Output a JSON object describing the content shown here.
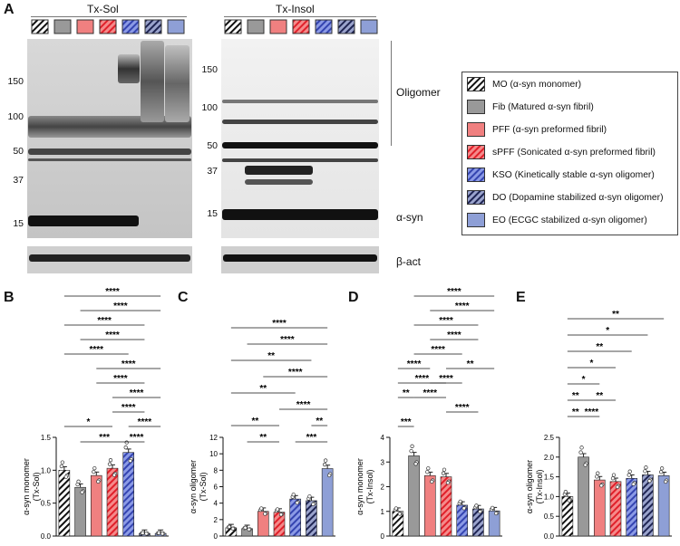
{
  "panel_labels": {
    "A": "A",
    "B": "B",
    "C": "C",
    "D": "D",
    "E": "E"
  },
  "blot": {
    "sol_title": "Tx-Sol",
    "insol_title": "Tx-Insol",
    "sol_mw": [
      "150",
      "100",
      "50",
      "37",
      "15"
    ],
    "insol_mw": [
      "150",
      "100",
      "50",
      "37",
      "15"
    ],
    "label_oligomer": "Oligomer",
    "label_asyn": "α-syn",
    "label_bact": "β-act"
  },
  "colors": {
    "MO": "hatch-black",
    "Fib": "#999999",
    "PFF": "#f08080",
    "sPFF": "#f06060",
    "KSO": "#7788dd",
    "DO": "#7a84b8",
    "EO": "#8e9fd6"
  },
  "legend": [
    {
      "key": "MO",
      "text": "MO (α-syn monomer)"
    },
    {
      "key": "Fib",
      "text": "Fib (Matured α-syn fibril)"
    },
    {
      "key": "PFF",
      "text": "PFF (α-syn preformed fibril)"
    },
    {
      "key": "sPFF",
      "text": "sPFF (Sonicated α-syn preformed fibril)"
    },
    {
      "key": "KSO",
      "text": "KSO (Kinetically stable α-syn oligomer)"
    },
    {
      "key": "DO",
      "text": "DO (Dopamine stabilized α-syn oligomer)"
    },
    {
      "key": "EO",
      "text": "EO (ECGC stabilized α-syn oligomer)"
    }
  ],
  "chart_data": [
    {
      "panel": "B",
      "type": "bar",
      "categories": [
        "MO",
        "Fib",
        "PFF",
        "sPFF",
        "KSO",
        "DO",
        "EO"
      ],
      "values": [
        1.0,
        0.74,
        0.92,
        1.03,
        1.27,
        0.04,
        0.04
      ],
      "ylabel": "α-syn monomer\n(Tx-Sol)",
      "ylim": [
        0,
        1.5
      ],
      "yticks": [
        "0.0",
        "0.5",
        "1.0",
        "1.5"
      ],
      "sig": [
        "****",
        "****",
        "****",
        "****",
        "****",
        "****",
        "****",
        "****",
        "****",
        "*",
        "****",
        "***",
        "****"
      ]
    },
    {
      "panel": "C",
      "type": "bar",
      "categories": [
        "MO",
        "Fib",
        "PFF",
        "sPFF",
        "KSO",
        "DO",
        "EO"
      ],
      "values": [
        1.0,
        0.9,
        3.0,
        2.9,
        4.5,
        4.3,
        8.2
      ],
      "ylabel": "α-syn oligomer\n(Tx-Sol)",
      "ylim": [
        0,
        12
      ],
      "yticks": [
        "0",
        "2",
        "4",
        "6",
        "8",
        "10",
        "12"
      ],
      "sig": [
        "****",
        "****",
        "**",
        "****",
        "**",
        "****",
        "**",
        "**",
        "**",
        "***"
      ]
    },
    {
      "panel": "D",
      "type": "bar",
      "categories": [
        "MO",
        "Fib",
        "PFF",
        "sPFF",
        "KSO",
        "DO",
        "EO"
      ],
      "values": [
        1.0,
        3.25,
        2.45,
        2.4,
        1.25,
        1.1,
        1.02
      ],
      "ylabel": "α-syn monomer\n(Tx-Insol)",
      "ylim": [
        0,
        4
      ],
      "yticks": [
        "0",
        "1",
        "2",
        "3",
        "4"
      ],
      "sig": [
        "****",
        "****",
        "****",
        "****",
        "****",
        "****",
        "**",
        "****",
        "****",
        "**",
        "****",
        "****",
        "***"
      ]
    },
    {
      "panel": "E",
      "type": "bar",
      "categories": [
        "MO",
        "Fib",
        "PFF",
        "sPFF",
        "KSO",
        "DO",
        "EO"
      ],
      "values": [
        1.0,
        2.0,
        1.42,
        1.38,
        1.46,
        1.55,
        1.53
      ],
      "ylabel": "α-syn oligomer\n(Tx-Insol)",
      "ylim": [
        0,
        2.5
      ],
      "yticks": [
        "0.0",
        "0.5",
        "1.0",
        "1.5",
        "2.0",
        "2.5"
      ],
      "sig": [
        "**",
        "*",
        "**",
        "*",
        "*",
        "**",
        "**",
        "****",
        "**"
      ]
    }
  ]
}
